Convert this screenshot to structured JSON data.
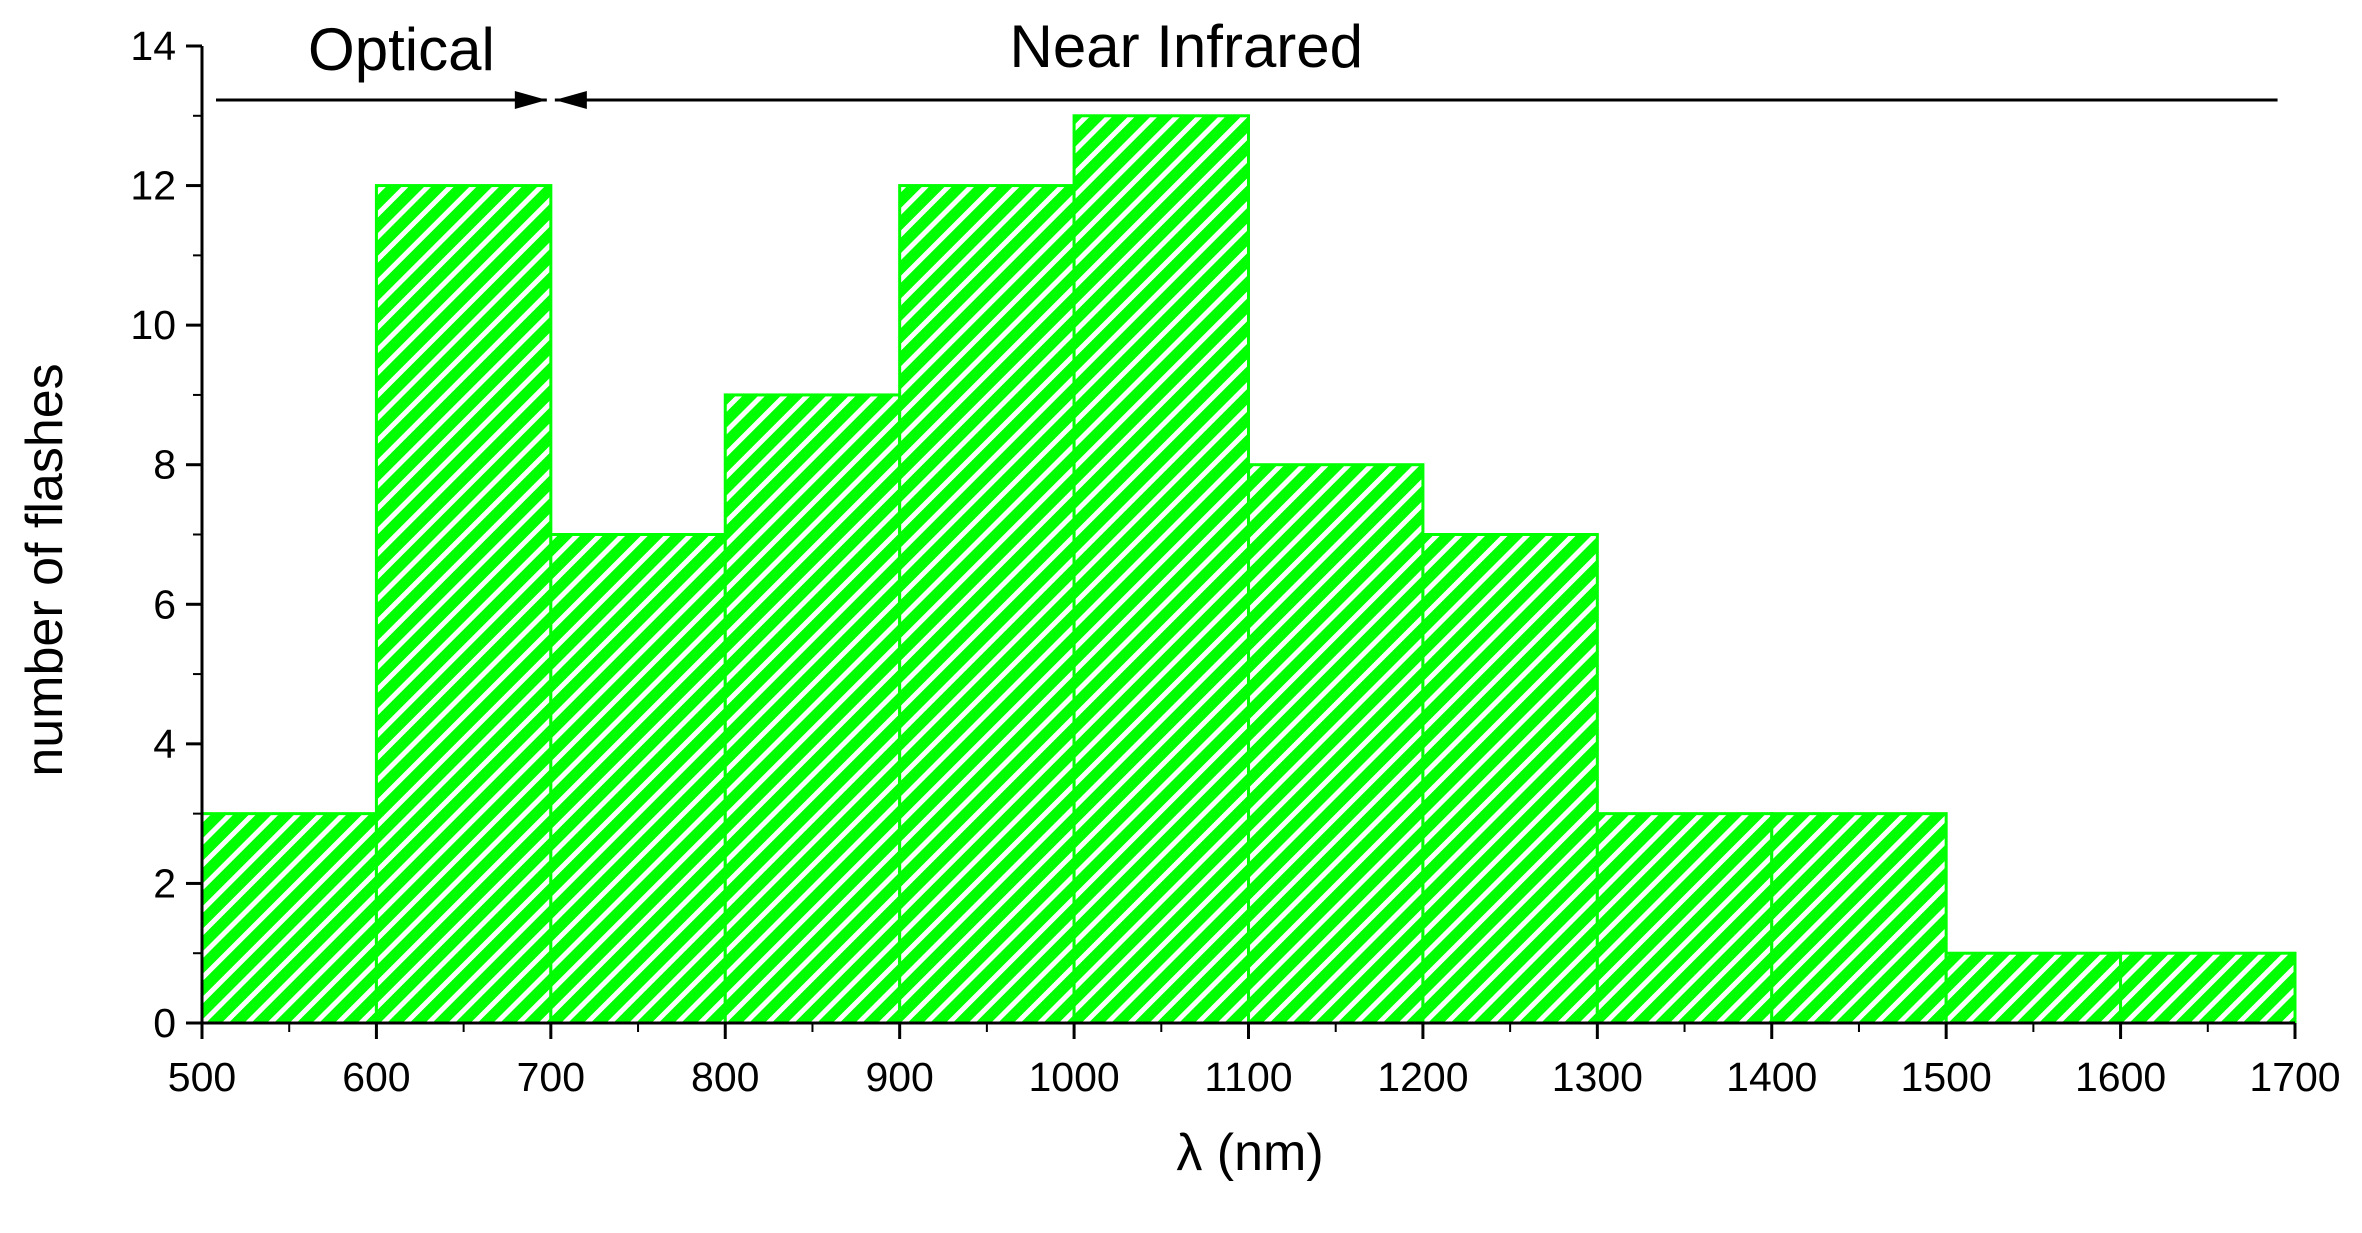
{
  "chart_data": {
    "type": "bar",
    "bins": [
      {
        "x0": 500,
        "x1": 600,
        "value": 3
      },
      {
        "x0": 600,
        "x1": 700,
        "value": 12
      },
      {
        "x0": 700,
        "x1": 800,
        "value": 7
      },
      {
        "x0": 800,
        "x1": 900,
        "value": 9
      },
      {
        "x0": 900,
        "x1": 1000,
        "value": 12
      },
      {
        "x0": 1000,
        "x1": 1100,
        "value": 13
      },
      {
        "x0": 1100,
        "x1": 1200,
        "value": 8
      },
      {
        "x0": 1200,
        "x1": 1300,
        "value": 7
      },
      {
        "x0": 1300,
        "x1": 1400,
        "value": 3
      },
      {
        "x0": 1400,
        "x1": 1500,
        "value": 3
      },
      {
        "x0": 1500,
        "x1": 1600,
        "value": 1
      },
      {
        "x0": 1600,
        "x1": 1700,
        "value": 1
      }
    ],
    "xlabel": "λ (nm)",
    "ylabel": "number of flashes",
    "xlim": [
      500,
      1700
    ],
    "ylim": [
      0,
      14
    ],
    "xticks": [
      "500",
      "600",
      "700",
      "800",
      "900",
      "1000",
      "1100",
      "1200",
      "1300",
      "1400",
      "1500",
      "1600",
      "1700"
    ],
    "yticks": [
      "0",
      "2",
      "4",
      "6",
      "8",
      "10",
      "12",
      "14"
    ],
    "grid": false,
    "bar_color": "#00ff00",
    "hatch_color": "#ffffff",
    "annotations": {
      "optical": {
        "text": "Optical",
        "from": 500,
        "to": 700
      },
      "near_infrared": {
        "text": "Near Infrared",
        "from": 700,
        "to": 1690
      }
    }
  }
}
